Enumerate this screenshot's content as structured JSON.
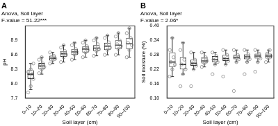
{
  "chart_data": [
    {
      "type": "box",
      "title": "A",
      "annotations": [
        "Anova, Soil layer",
        "F-value = 51.22***"
      ],
      "x_label": "Soil layer (cm)",
      "y_label": "pH",
      "categories": [
        "0–10",
        "10–20",
        "20–30",
        "30–40",
        "40–50",
        "50–60",
        "60–70",
        "70–80",
        "80–90",
        "90–100"
      ],
      "boxes": [
        {
          "min": 7.88,
          "q1": 8.1,
          "median": 8.2,
          "q3": 8.28,
          "max": 8.42
        },
        {
          "min": 8.2,
          "q1": 8.3,
          "median": 8.37,
          "q3": 8.43,
          "max": 8.55
        },
        {
          "min": 8.42,
          "q1": 8.48,
          "median": 8.53,
          "q3": 8.58,
          "max": 8.65
        },
        {
          "min": 8.45,
          "q1": 8.56,
          "median": 8.62,
          "q3": 8.68,
          "max": 8.8
        },
        {
          "min": 8.5,
          "q1": 8.6,
          "median": 8.66,
          "q3": 8.72,
          "max": 8.85
        },
        {
          "min": 8.55,
          "q1": 8.65,
          "median": 8.72,
          "q3": 8.78,
          "max": 8.9
        },
        {
          "min": 8.58,
          "q1": 8.68,
          "median": 8.74,
          "q3": 8.8,
          "max": 8.95
        },
        {
          "min": 8.6,
          "q1": 8.7,
          "median": 8.78,
          "q3": 8.85,
          "max": 9.0
        },
        {
          "min": 8.6,
          "q1": 8.72,
          "median": 8.8,
          "q3": 8.9,
          "max": 9.05
        },
        {
          "min": 8.55,
          "q1": 8.72,
          "median": 8.83,
          "q3": 8.95,
          "max": 9.15
        }
      ],
      "points": [
        [
          7.82,
          7.95,
          8.1,
          8.15,
          8.2,
          8.25,
          8.3,
          8.42
        ],
        [
          8.22,
          8.3,
          8.35,
          8.38,
          8.42,
          8.5,
          8.55
        ],
        [
          8.42,
          8.48,
          8.52,
          8.55,
          8.58,
          8.65
        ],
        [
          8.45,
          8.55,
          8.6,
          8.63,
          8.68,
          8.75,
          8.8
        ],
        [
          8.5,
          8.6,
          8.65,
          8.68,
          8.72,
          8.8,
          8.85
        ],
        [
          8.55,
          8.65,
          8.7,
          8.74,
          8.78,
          8.85,
          8.9
        ],
        [
          8.58,
          8.68,
          8.72,
          8.76,
          8.82,
          8.9,
          8.95
        ],
        [
          8.6,
          8.7,
          8.75,
          8.8,
          8.86,
          8.95,
          9.0
        ],
        [
          8.6,
          8.72,
          8.78,
          8.82,
          8.9,
          8.98,
          9.05
        ],
        [
          8.55,
          8.7,
          8.8,
          8.85,
          8.95,
          9.05,
          9.15
        ]
      ],
      "color": "#333333",
      "ylim": [
        7.7,
        9.2
      ],
      "yticks": [
        7.7,
        {
          "value": 8,
          "label": "8.0"
        },
        8.3,
        8.6,
        8.9
      ],
      "grid": false
    },
    {
      "type": "box",
      "title": "B",
      "annotations": [
        "Anova, Soil layer",
        "F-value = 2.06*"
      ],
      "x_label": "Soil layer (cm)",
      "y_label": "Soil moisture (%)",
      "categories": [
        "0–10",
        "10–20",
        "20–30",
        "30–40",
        "40–50",
        "50–60",
        "60–70",
        "70–80",
        "80–90",
        "90–100"
      ],
      "boxes": [
        {
          "min": 0.19,
          "q1": 0.23,
          "median": 0.25,
          "q3": 0.29,
          "max": 0.35
        },
        {
          "min": 0.2,
          "q1": 0.22,
          "median": 0.24,
          "q3": 0.27,
          "max": 0.33
        },
        {
          "min": 0.22,
          "q1": 0.235,
          "median": 0.245,
          "q3": 0.26,
          "max": 0.29
        },
        {
          "min": 0.23,
          "q1": 0.245,
          "median": 0.255,
          "q3": 0.27,
          "max": 0.29
        },
        {
          "min": 0.24,
          "q1": 0.25,
          "median": 0.26,
          "q3": 0.275,
          "max": 0.29
        },
        {
          "min": 0.24,
          "q1": 0.255,
          "median": 0.265,
          "q3": 0.28,
          "max": 0.3
        },
        {
          "min": 0.25,
          "q1": 0.262,
          "median": 0.27,
          "q3": 0.28,
          "max": 0.3
        },
        {
          "min": 0.25,
          "q1": 0.262,
          "median": 0.272,
          "q3": 0.282,
          "max": 0.3
        },
        {
          "min": 0.25,
          "q1": 0.265,
          "median": 0.275,
          "q3": 0.285,
          "max": 0.3
        },
        {
          "min": 0.25,
          "q1": 0.265,
          "median": 0.275,
          "q3": 0.285,
          "max": 0.3
        }
      ],
      "points": [
        [
          0.19,
          0.22,
          0.24,
          0.25,
          0.27,
          0.3,
          0.35
        ],
        [
          0.15,
          0.2,
          0.22,
          0.24,
          0.26,
          0.3,
          0.33
        ],
        [
          0.15,
          0.22,
          0.235,
          0.245,
          0.26,
          0.29
        ],
        [
          0.23,
          0.245,
          0.255,
          0.26,
          0.27,
          0.29
        ],
        [
          0.2,
          0.24,
          0.25,
          0.26,
          0.275,
          0.29
        ],
        [
          0.19,
          0.24,
          0.255,
          0.265,
          0.28,
          0.3
        ],
        [
          0.13,
          0.25,
          0.262,
          0.27,
          0.28,
          0.3
        ],
        [
          0.2,
          0.25,
          0.262,
          0.272,
          0.282,
          0.3
        ],
        [
          0.21,
          0.25,
          0.265,
          0.275,
          0.285,
          0.3
        ],
        [
          0.25,
          0.265,
          0.275,
          0.285,
          0.3
        ]
      ],
      "color": "#333333",
      "ylim": [
        0.1,
        0.4
      ],
      "yticks": [
        {
          "value": 0.1,
          "label": "0.10"
        },
        0.16,
        0.22,
        0.28,
        0.34,
        {
          "value": 0.4,
          "label": "0.40"
        }
      ],
      "grid": false
    }
  ]
}
